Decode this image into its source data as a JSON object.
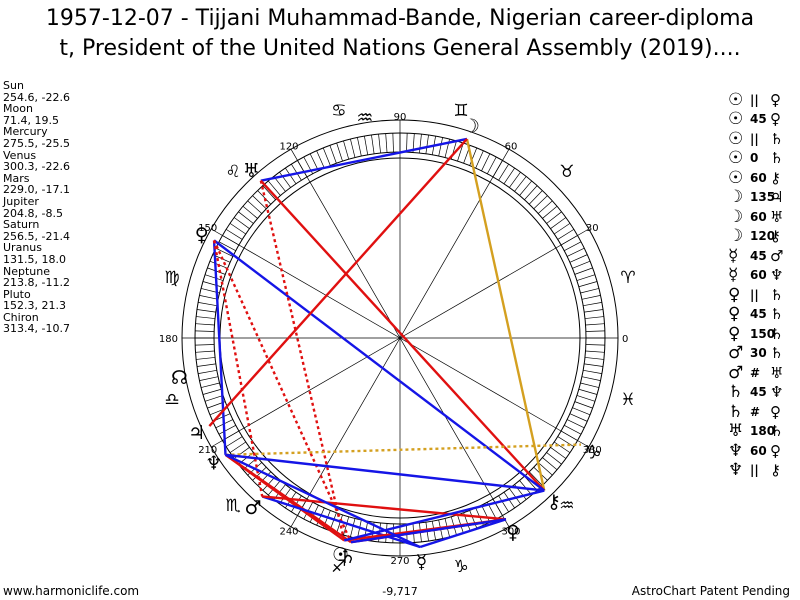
{
  "title": "1957-12-07 - Tijjani Muhammad-Bande, Nigerian career-diploma\nt, President of the United Nations General Assembly (2019)....",
  "planets": [
    {
      "name": "Sun",
      "coords": "254.6, -22.6"
    },
    {
      "name": "Moon",
      "coords": "71.4, 19.5"
    },
    {
      "name": "Mercury",
      "coords": "275.5, -25.5"
    },
    {
      "name": "Venus",
      "coords": "300.3, -22.6"
    },
    {
      "name": "Mars",
      "coords": "229.0, -17.1"
    },
    {
      "name": "Jupiter",
      "coords": "204.8, -8.5"
    },
    {
      "name": "Saturn",
      "coords": "256.5, -21.4"
    },
    {
      "name": "Uranus",
      "coords": "131.5, 18.0"
    },
    {
      "name": "Neptune",
      "coords": "213.8, -11.2"
    },
    {
      "name": "Pluto",
      "coords": "152.3, 21.3"
    },
    {
      "name": "Chiron",
      "coords": "313.4, -10.7"
    }
  ],
  "aspects": [
    {
      "p1": "☉",
      "sym": "||",
      "p2": "♀"
    },
    {
      "p1": "☉",
      "sym": "45",
      "p2": "♀"
    },
    {
      "p1": "☉",
      "sym": "||",
      "p2": "♄"
    },
    {
      "p1": "☉",
      "sym": "0",
      "p2": "♄"
    },
    {
      "p1": "☉",
      "sym": "60",
      "p2": "⚷"
    },
    {
      "p1": "☽",
      "sym": "135",
      "p2": "♃"
    },
    {
      "p1": "☽",
      "sym": "60",
      "p2": "♅"
    },
    {
      "p1": "☽",
      "sym": "120",
      "p2": "⚷"
    },
    {
      "p1": "☿",
      "sym": "45",
      "p2": "♂"
    },
    {
      "p1": "☿",
      "sym": "60",
      "p2": "♆"
    },
    {
      "p1": "♀",
      "sym": "||",
      "p2": "♄"
    },
    {
      "p1": "♀",
      "sym": "45",
      "p2": "♄"
    },
    {
      "p1": "♀",
      "sym": "150",
      "p2": "♄"
    },
    {
      "p1": "♂",
      "sym": "30",
      "p2": "♄"
    },
    {
      "p1": "♂",
      "sym": "#",
      "p2": "♅"
    },
    {
      "p1": "♄",
      "sym": "45",
      "p2": "♆"
    },
    {
      "p1": "♄",
      "sym": "#",
      "p2": "♀"
    },
    {
      "p1": "♅",
      "sym": "180",
      "p2": "♄"
    },
    {
      "p1": "♆",
      "sym": "60",
      "p2": "♀"
    },
    {
      "p1": "♆",
      "sym": "||",
      "p2": "⚷"
    }
  ],
  "wheel": {
    "degree_labels": [
      {
        "deg": 0,
        "text": "0"
      },
      {
        "deg": 30,
        "text": "30"
      },
      {
        "deg": 60,
        "text": "60"
      },
      {
        "deg": 90,
        "text": "90"
      },
      {
        "deg": 120,
        "text": "120"
      },
      {
        "deg": 150,
        "text": "150"
      },
      {
        "deg": 180,
        "text": "180"
      },
      {
        "deg": 210,
        "text": "210"
      },
      {
        "deg": 240,
        "text": "240"
      },
      {
        "deg": 270,
        "text": "270"
      },
      {
        "deg": 300,
        "text": "300"
      },
      {
        "deg": 330,
        "text": "330"
      }
    ],
    "signs": [
      {
        "deg": 15,
        "glyph": "♈"
      },
      {
        "deg": 45,
        "glyph": "♉"
      },
      {
        "deg": 75,
        "glyph": "♊"
      },
      {
        "deg": 105,
        "glyph": "♋"
      },
      {
        "deg": 135,
        "glyph": "♌"
      },
      {
        "deg": 165,
        "glyph": "♍"
      },
      {
        "deg": 195,
        "glyph": "♎"
      },
      {
        "deg": 225,
        "glyph": "♏"
      },
      {
        "deg": 255,
        "glyph": "♐"
      },
      {
        "deg": 285,
        "glyph": "♑"
      },
      {
        "deg": 315,
        "glyph": "♒"
      },
      {
        "deg": 345,
        "glyph": "♓"
      }
    ],
    "bodies": [
      {
        "key": "sun",
        "deg": 254.6,
        "glyph": "☉"
      },
      {
        "key": "moon",
        "deg": 71.4,
        "glyph": "☽"
      },
      {
        "key": "mercury",
        "deg": 275.5,
        "glyph": "☿"
      },
      {
        "key": "venus",
        "deg": 300.3,
        "glyph": "♀"
      },
      {
        "key": "mars",
        "deg": 229.0,
        "glyph": "♂"
      },
      {
        "key": "jupiter",
        "deg": 204.8,
        "glyph": "♃"
      },
      {
        "key": "saturn",
        "deg": 256.5,
        "glyph": "♄"
      },
      {
        "key": "uranus",
        "deg": 131.5,
        "glyph": "♅"
      },
      {
        "key": "neptune",
        "deg": 213.8,
        "glyph": "♆"
      },
      {
        "key": "pluto",
        "deg": 152.3,
        "glyph": "♀"
      },
      {
        "key": "chiron",
        "deg": 313.4,
        "glyph": "⚷"
      },
      {
        "key": "node",
        "deg": 190.0,
        "glyph": "☊"
      },
      {
        "key": "mc",
        "deg": 99.0,
        "glyph": "♒"
      },
      {
        "key": "asc",
        "deg": 329.5,
        "glyph": "♑"
      }
    ],
    "aspect_lines": [
      {
        "a": "moon",
        "b": "uranus",
        "color": "#1515e6",
        "dash": false
      },
      {
        "a": "moon",
        "b": "chiron",
        "color": "#d4a020",
        "dash": false
      },
      {
        "a": "uranus",
        "b": "chiron",
        "color": "#e01010",
        "dash": false
      },
      {
        "a": "pluto",
        "b": "neptune",
        "color": "#1515e6",
        "dash": false
      },
      {
        "a": "pluto",
        "b": "chiron",
        "color": "#1515e6",
        "dash": false
      },
      {
        "a": "pluto",
        "b": "mars",
        "color": "#e01010",
        "dash": true
      },
      {
        "a": "pluto",
        "b": "saturn",
        "color": "#e01010",
        "dash": true
      },
      {
        "a": "uranus",
        "b": "sun",
        "color": "#e01010",
        "dash": true
      },
      {
        "a": "neptune",
        "b": "saturn",
        "color": "#e01010",
        "dash": false
      },
      {
        "a": "neptune",
        "b": "sun",
        "color": "#e01010",
        "dash": false
      },
      {
        "a": "neptune",
        "b": "asc",
        "color": "#d4a020",
        "dash": true
      },
      {
        "a": "mars",
        "b": "mercury",
        "color": "#1515e6",
        "dash": false
      },
      {
        "a": "mars",
        "b": "venus",
        "color": "#e01010",
        "dash": false
      },
      {
        "a": "sun",
        "b": "venus",
        "color": "#e01010",
        "dash": false
      },
      {
        "a": "saturn",
        "b": "venus",
        "color": "#e01010",
        "dash": false
      },
      {
        "a": "sun",
        "b": "chiron",
        "color": "#1515e6",
        "dash": false
      },
      {
        "a": "mercury",
        "b": "venus",
        "color": "#1515e6",
        "dash": false
      },
      {
        "a": "saturn",
        "b": "venus",
        "color": "#1515e6",
        "dash": false
      },
      {
        "a": "neptune",
        "b": "mercury",
        "color": "#1515e6",
        "dash": false
      },
      {
        "a": "neptune",
        "b": "chiron",
        "color": "#1515e6",
        "dash": false
      },
      {
        "a": "jupiter",
        "b": "moon",
        "color": "#e01010",
        "dash": false
      }
    ],
    "bottom_value": "-9,717"
  },
  "footer": {
    "left": "www.harmoniclife.com",
    "right": "AstroChart Patent Pending"
  }
}
